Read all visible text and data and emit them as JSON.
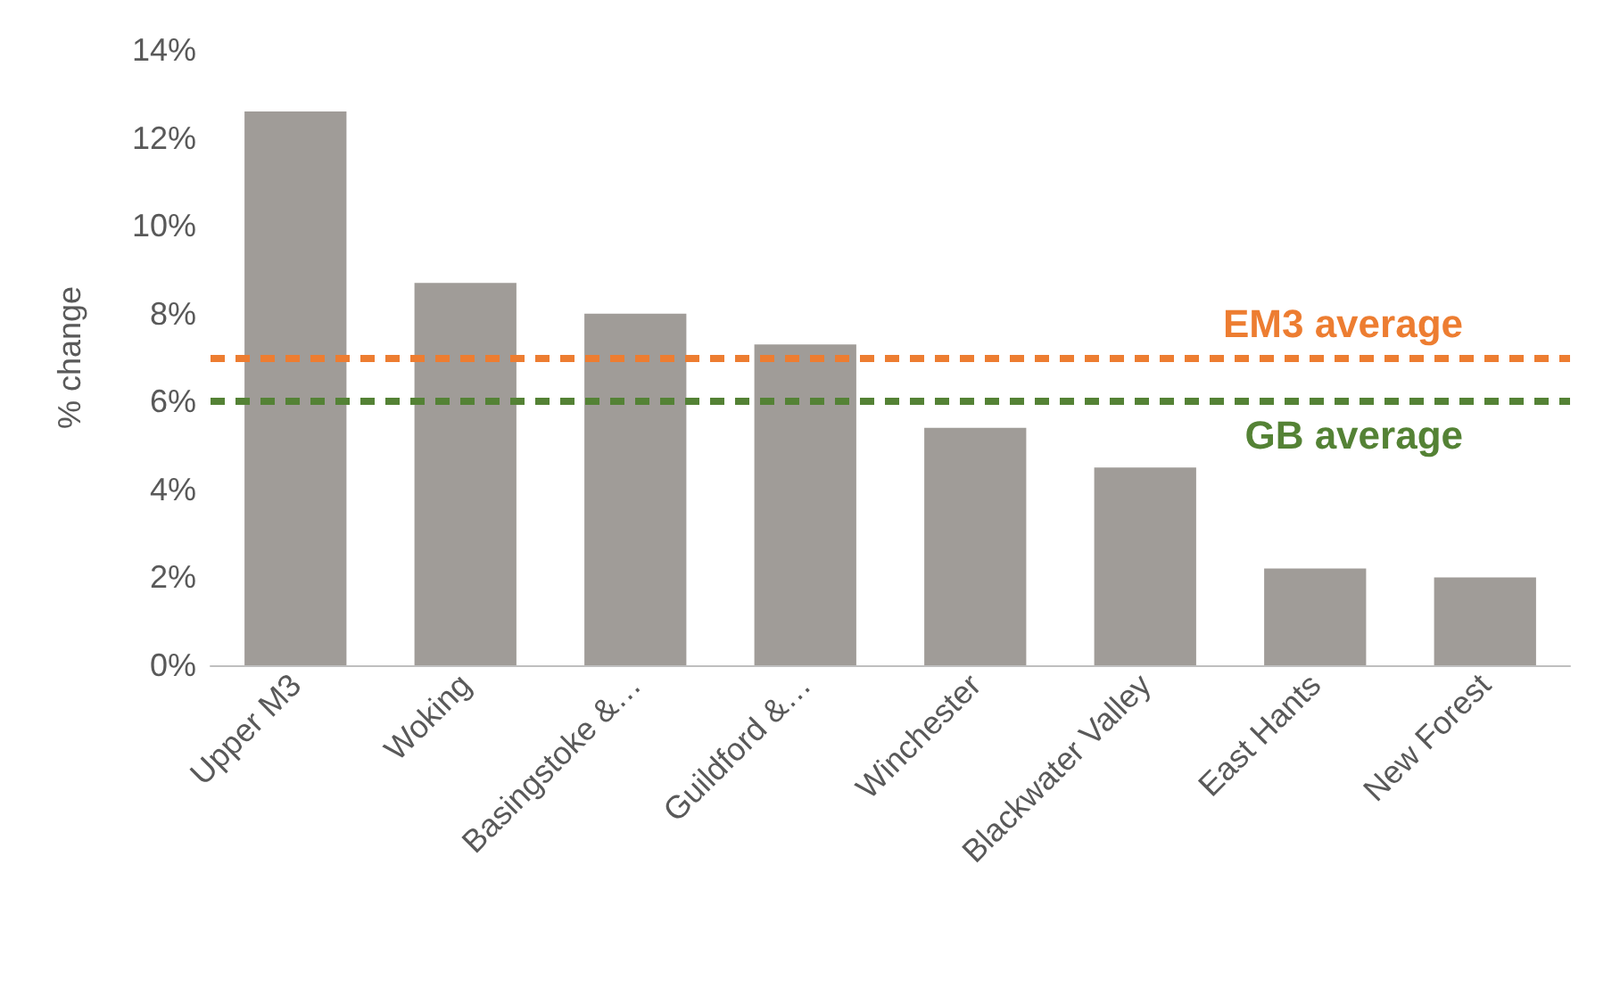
{
  "chart_data": {
    "type": "bar",
    "ylabel": "% change",
    "categories": [
      "Upper M3",
      "Woking",
      "Basingstoke &…",
      "Guildford &…",
      "Winchester",
      "Blackwater Valley",
      "East Hants",
      "New Forest"
    ],
    "values": [
      12.6,
      8.7,
      8.0,
      7.3,
      5.4,
      4.5,
      2.2,
      2.0
    ],
    "color": "#a09c98",
    "ylim": [
      0,
      14
    ],
    "yticks": [
      {
        "value": 0,
        "label": "0%"
      },
      {
        "value": 2,
        "label": "2%"
      },
      {
        "value": 4,
        "label": "4%"
      },
      {
        "value": 6,
        "label": "6%"
      },
      {
        "value": 8,
        "label": "8%"
      },
      {
        "value": 10,
        "label": "10%"
      },
      {
        "value": 12,
        "label": "12%"
      },
      {
        "value": 14,
        "label": "14%"
      }
    ],
    "ref_lines": [
      {
        "axis": "y",
        "value": 7.0,
        "label": "EM3 average",
        "color": "#ed7d31",
        "line_style": "dashed"
      },
      {
        "axis": "y",
        "value": 6.0,
        "label": "GB average",
        "color": "#548235",
        "line_style": "dashed"
      }
    ],
    "grid": false
  }
}
